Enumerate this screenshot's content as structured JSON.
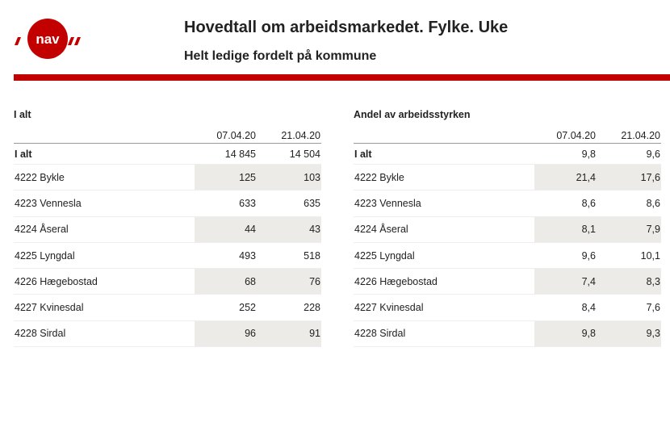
{
  "header": {
    "logo_text": "nav",
    "title": "Hovedtall om arbeidsmarkedet. Fylke. Uke",
    "subtitle": "Helt ledige fordelt på kommune",
    "brand_color": "#c30000"
  },
  "left_table": {
    "caption": "I alt",
    "columns": [
      "07.04.20",
      "21.04.20"
    ],
    "rows": [
      {
        "name": "I alt",
        "v1": "14 845",
        "v2": "14 504"
      },
      {
        "name": "4222 Bykle",
        "v1": "125",
        "v2": "103"
      },
      {
        "name": "4223 Vennesla",
        "v1": "633",
        "v2": "635"
      },
      {
        "name": "4224 Åseral",
        "v1": "44",
        "v2": "43"
      },
      {
        "name": "4225 Lyngdal",
        "v1": "493",
        "v2": "518"
      },
      {
        "name": "4226 Hægebostad",
        "v1": "68",
        "v2": "76"
      },
      {
        "name": "4227 Kvinesdal",
        "v1": "252",
        "v2": "228"
      },
      {
        "name": "4228 Sirdal",
        "v1": "96",
        "v2": "91"
      }
    ]
  },
  "right_table": {
    "caption": "Andel av arbeidsstyrken",
    "columns": [
      "07.04.20",
      "21.04.20"
    ],
    "rows": [
      {
        "name": "I alt",
        "v1": "9,8",
        "v2": "9,6"
      },
      {
        "name": "4222 Bykle",
        "v1": "21,4",
        "v2": "17,6"
      },
      {
        "name": "4223 Vennesla",
        "v1": "8,6",
        "v2": "8,6"
      },
      {
        "name": "4224 Åseral",
        "v1": "8,1",
        "v2": "7,9"
      },
      {
        "name": "4225 Lyngdal",
        "v1": "9,6",
        "v2": "10,1"
      },
      {
        "name": "4226 Hægebostad",
        "v1": "7,4",
        "v2": "8,3"
      },
      {
        "name": "4227 Kvinesdal",
        "v1": "8,4",
        "v2": "7,6"
      },
      {
        "name": "4228 Sirdal",
        "v1": "9,8",
        "v2": "9,3"
      }
    ]
  }
}
